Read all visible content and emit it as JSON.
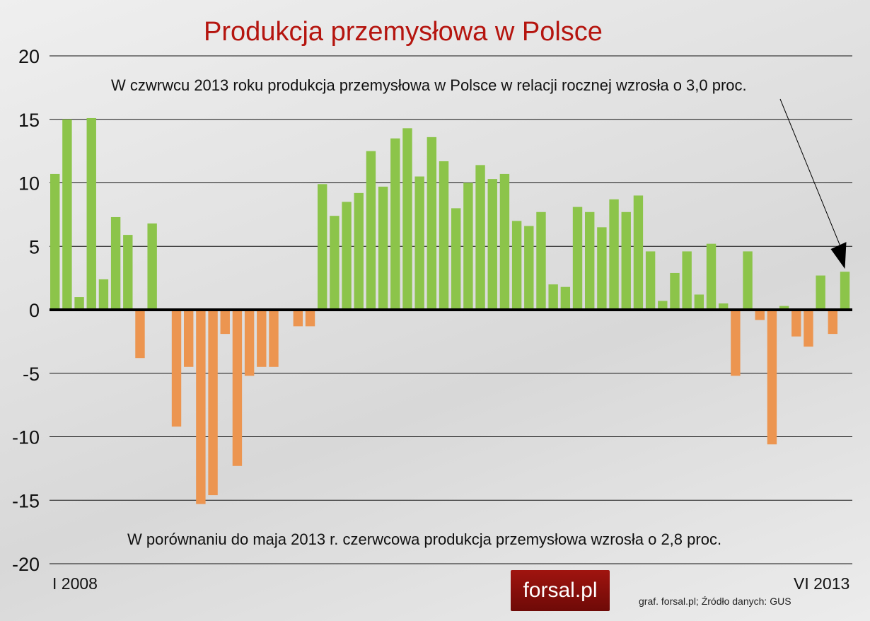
{
  "chart_data": {
    "type": "bar",
    "title": "Produkcja przemysłowa w Polsce",
    "ylim": [
      -20,
      20
    ],
    "yticks": [
      20,
      15,
      10,
      5,
      0,
      -5,
      -10,
      -15,
      -20
    ],
    "x_start_label": "I 2008",
    "x_end_label": "VI 2013",
    "grid": true,
    "colors": {
      "positive": "#8cc44a",
      "negative": "#ec9550"
    },
    "values": [
      10.7,
      15.0,
      1.0,
      15.1,
      2.4,
      7.3,
      5.9,
      -3.8,
      6.8,
      0.1,
      -9.2,
      -4.5,
      -15.3,
      -14.6,
      -1.9,
      -12.3,
      -5.2,
      -4.5,
      -4.5,
      0.0,
      -1.3,
      -1.3,
      9.9,
      7.4,
      8.5,
      9.2,
      12.5,
      9.7,
      13.5,
      14.3,
      10.5,
      13.6,
      11.7,
      8.0,
      10.0,
      11.4,
      10.3,
      10.7,
      7.0,
      6.6,
      7.7,
      2.0,
      1.8,
      8.1,
      7.7,
      6.5,
      8.7,
      7.7,
      9.0,
      4.6,
      0.7,
      2.9,
      4.6,
      1.2,
      5.2,
      0.5,
      -5.2,
      4.6,
      -0.8,
      -10.6,
      0.3,
      -2.1,
      -2.9,
      2.7,
      -1.9,
      3.0
    ],
    "annotations": [
      "W czwrwcu 2013 roku produkcja przemysłowa w Polsce w relacji rocznej wzrosła o 3,0 proc.",
      "W porównaniu do maja 2013 r. czerwcowa produkcja przemysłowa wzrosła o 2,8 proc."
    ]
  },
  "logo": "forsal.pl",
  "source": "graf. forsal.pl;  Źródło danych: GUS"
}
